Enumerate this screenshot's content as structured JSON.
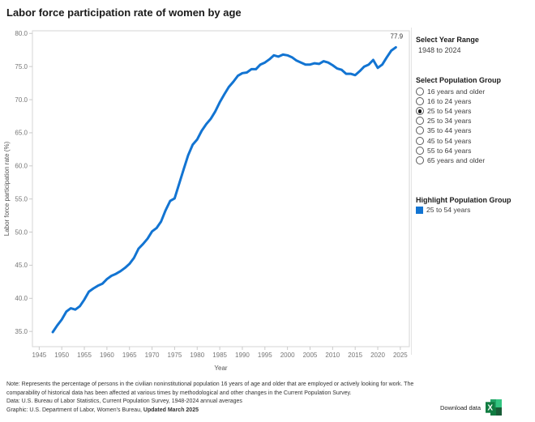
{
  "title": "Labor force participation rate of women by age",
  "chart_data": {
    "type": "line",
    "title": "Labor force participation rate of women by age",
    "xlabel": "Year",
    "ylabel": "Labor force participation rate (%)",
    "xlim": [
      1943.5,
      2027.0
    ],
    "ylim": [
      32.7,
      80.4
    ],
    "x_ticks": [
      1945,
      1950,
      1955,
      1960,
      1965,
      1970,
      1975,
      1980,
      1985,
      1990,
      1995,
      2000,
      2005,
      2010,
      2015,
      2020,
      2025
    ],
    "y_ticks": [
      35,
      40,
      45,
      50,
      55,
      60,
      65,
      70,
      75,
      80
    ],
    "grid": false,
    "line_color": "#1274d2",
    "end_label": "77.9",
    "series": [
      {
        "name": "25 to 54 years",
        "x": [
          1948,
          1949,
          1950,
          1951,
          1952,
          1953,
          1954,
          1955,
          1956,
          1957,
          1958,
          1959,
          1960,
          1961,
          1962,
          1963,
          1964,
          1965,
          1966,
          1967,
          1968,
          1969,
          1970,
          1971,
          1972,
          1973,
          1974,
          1975,
          1976,
          1977,
          1978,
          1979,
          1980,
          1981,
          1982,
          1983,
          1984,
          1985,
          1986,
          1987,
          1988,
          1989,
          1990,
          1991,
          1992,
          1993,
          1994,
          1995,
          1996,
          1997,
          1998,
          1999,
          2000,
          2001,
          2002,
          2003,
          2004,
          2005,
          2006,
          2007,
          2008,
          2009,
          2010,
          2011,
          2012,
          2013,
          2014,
          2015,
          2016,
          2017,
          2018,
          2019,
          2020,
          2021,
          2022,
          2023,
          2024
        ],
        "values": [
          34.9,
          35.9,
          36.8,
          38.0,
          38.5,
          38.3,
          38.8,
          39.8,
          41.0,
          41.5,
          41.9,
          42.2,
          42.9,
          43.4,
          43.7,
          44.1,
          44.6,
          45.2,
          46.1,
          47.5,
          48.2,
          49.0,
          50.1,
          50.6,
          51.6,
          53.3,
          54.7,
          55.1,
          57.3,
          59.5,
          61.6,
          63.2,
          64.0,
          65.3,
          66.3,
          67.1,
          68.2,
          69.6,
          70.8,
          71.9,
          72.7,
          73.6,
          74.0,
          74.1,
          74.6,
          74.6,
          75.3,
          75.6,
          76.1,
          76.7,
          76.5,
          76.8,
          76.7,
          76.4,
          75.9,
          75.6,
          75.3,
          75.3,
          75.5,
          75.4,
          75.8,
          75.6,
          75.2,
          74.7,
          74.5,
          73.9,
          73.9,
          73.7,
          74.3,
          75.0,
          75.3,
          76.0,
          74.8,
          75.3,
          76.4,
          77.4,
          77.9
        ]
      }
    ]
  },
  "controls": {
    "year_range": {
      "label": "Select Year Range",
      "value": "1948 to 2024"
    },
    "population_group": {
      "label": "Select Population Group",
      "options": [
        "16 years and older",
        "16 to 24 years",
        "25 to 54 years",
        "25 to 34 years",
        "35 to 44 years",
        "45 to 54 years",
        "55 to 64 years",
        "65 years and older"
      ],
      "selected": "25 to 54 years",
      "selected_index": 2
    },
    "highlight": {
      "label": "Highlight Population Group",
      "legend": {
        "label": "25 to 54 years",
        "color": "#1274d2"
      }
    }
  },
  "footer": {
    "note": "Note: Represents the percentage of persons in the civilian noninstitutional population 16 years of age and older that are employed or actively looking for work. The comparability of historical data has been affected at various times by methodological and other changes in the Current Population Survey.",
    "data_line": "Data: U.S. Bureau of Labor Statistics,  Current Population Survey, 1948-2024 annual averages",
    "graphic_prefix": "Graphic: U.S. Department of Labor, Women's Bureau, ",
    "graphic_updated": "Updated March 2025",
    "download_label": "Download data"
  }
}
